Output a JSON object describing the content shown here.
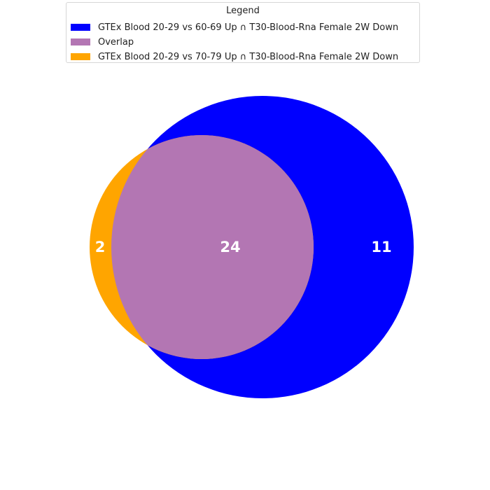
{
  "legend": {
    "title": "Legend",
    "items": [
      {
        "label": "GTEx Blood 20-29 vs 60-69 Up ∩ T30-Blood-Rna Female 2W Down",
        "color": "#0000ff"
      },
      {
        "label": "Overlap",
        "color": "#b376b3"
      },
      {
        "label": "GTEx Blood 20-29 vs 70-79 Up ∩ T30-Blood-Rna Female 2W Down",
        "color": "#ffa500"
      }
    ]
  },
  "chart_data": {
    "type": "venn",
    "sets": [
      {
        "name": "GTEx Blood 20-29 vs 60-69 Up ∩ T30-Blood-Rna Female 2W Down",
        "only": 11,
        "color": "#0000ff"
      },
      {
        "name": "GTEx Blood 20-29 vs 70-79 Up ∩ T30-Blood-Rna Female 2W Down",
        "only": 2,
        "color": "#ffa500"
      }
    ],
    "overlap": {
      "label": "Overlap",
      "value": 24,
      "color": "#b376b3"
    },
    "labels": {
      "set_a_only": "11",
      "overlap": "24",
      "set_b_only": "2"
    }
  }
}
